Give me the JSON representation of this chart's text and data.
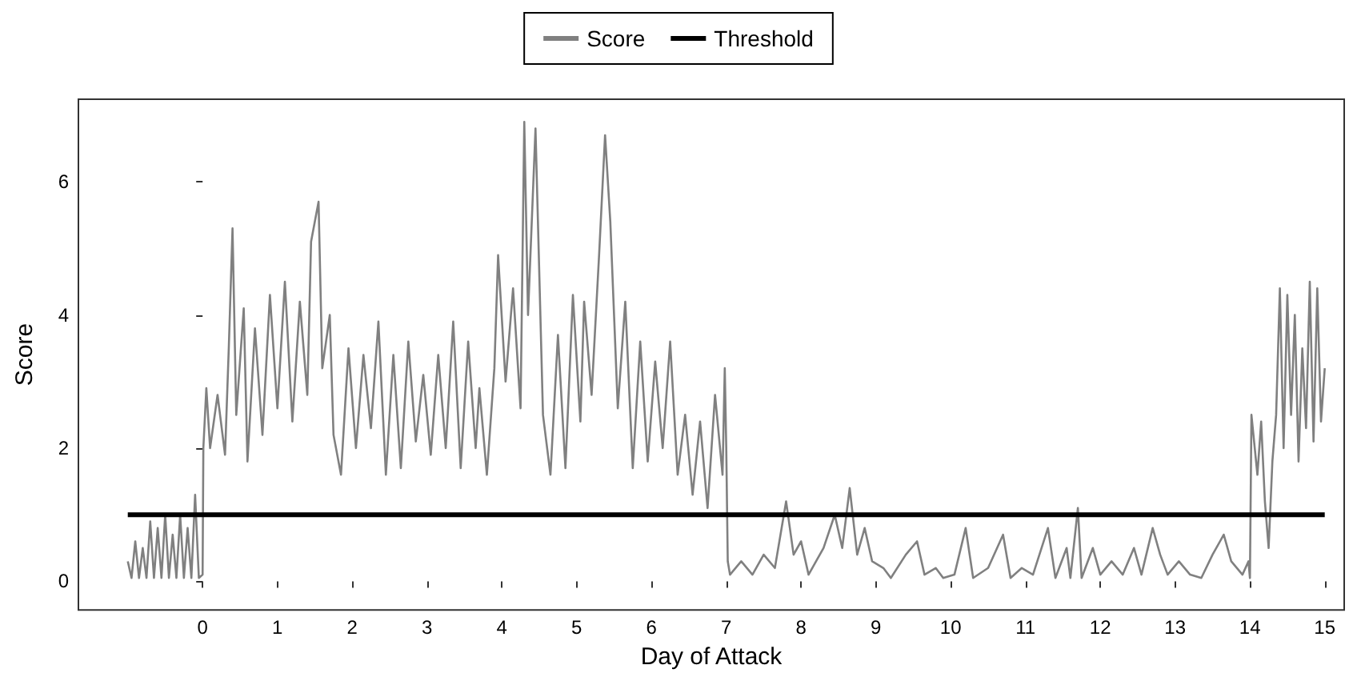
{
  "chart_data": {
    "type": "line",
    "xlabel": "Day of Attack",
    "ylabel": "Score",
    "xlim": [
      -1.66,
      15.26
    ],
    "ylim": [
      -0.43,
      7.24
    ],
    "xticks": [
      0,
      1,
      2,
      3,
      4,
      5,
      6,
      7,
      8,
      9,
      10,
      11,
      12,
      13,
      14,
      15
    ],
    "yticks": [
      0,
      2,
      4,
      6
    ],
    "grid": false,
    "legend": "top",
    "marker": "none",
    "line_style": "solid",
    "series": [
      {
        "name": "Score",
        "color": "#808080",
        "x": [
          -1,
          -0.95,
          -0.9,
          -0.85,
          -0.8,
          -0.75,
          -0.7,
          -0.65,
          -0.6,
          -0.55,
          -0.5,
          -0.45,
          -0.4,
          -0.35,
          -0.3,
          -0.25,
          -0.2,
          -0.15,
          -0.1,
          -0.05,
          0,
          0.01,
          0.05,
          0.1,
          0.2,
          0.3,
          0.35,
          0.4,
          0.45,
          0.55,
          0.6,
          0.7,
          0.8,
          0.9,
          1.0,
          1.1,
          1.2,
          1.3,
          1.4,
          1.45,
          1.55,
          1.6,
          1.7,
          1.75,
          1.85,
          1.95,
          2.05,
          2.15,
          2.25,
          2.35,
          2.45,
          2.55,
          2.65,
          2.75,
          2.85,
          2.95,
          3.05,
          3.15,
          3.25,
          3.35,
          3.45,
          3.55,
          3.65,
          3.7,
          3.8,
          3.9,
          3.95,
          4.05,
          4.15,
          4.25,
          4.3,
          4.35,
          4.45,
          4.55,
          4.65,
          4.75,
          4.85,
          4.95,
          5.05,
          5.1,
          5.2,
          5.3,
          5.38,
          5.45,
          5.55,
          5.65,
          5.75,
          5.85,
          5.95,
          6.05,
          6.15,
          6.25,
          6.35,
          6.45,
          6.55,
          6.65,
          6.75,
          6.85,
          6.95,
          6.98,
          7.0,
          7.02,
          7.05,
          7.2,
          7.35,
          7.5,
          7.65,
          7.8,
          7.9,
          8.0,
          8.1,
          8.3,
          8.45,
          8.55,
          8.65,
          8.75,
          8.85,
          8.95,
          9.1,
          9.2,
          9.4,
          9.55,
          9.65,
          9.8,
          9.9,
          10.05,
          10.2,
          10.3,
          10.5,
          10.7,
          10.8,
          10.95,
          11.1,
          11.3,
          11.4,
          11.55,
          11.6,
          11.7,
          11.75,
          11.9,
          12.0,
          12.15,
          12.3,
          12.45,
          12.55,
          12.7,
          12.8,
          12.9,
          13.05,
          13.2,
          13.35,
          13.5,
          13.65,
          13.75,
          13.9,
          13.98,
          14.0,
          14.02,
          14.1,
          14.15,
          14.2,
          14.25,
          14.3,
          14.35,
          14.4,
          14.45,
          14.5,
          14.55,
          14.6,
          14.65,
          14.7,
          14.75,
          14.8,
          14.85,
          14.9,
          14.95,
          15.0
        ],
        "values": [
          0.3,
          0.05,
          0.6,
          0.05,
          0.5,
          0.05,
          0.9,
          0.05,
          0.8,
          0.05,
          1.0,
          0.05,
          0.7,
          0.05,
          1.0,
          0.05,
          0.8,
          0.05,
          1.3,
          0.05,
          0.1,
          2.0,
          2.9,
          2.0,
          2.8,
          1.9,
          3.5,
          5.3,
          2.5,
          4.1,
          1.8,
          3.8,
          2.2,
          4.3,
          2.6,
          4.5,
          2.4,
          4.2,
          2.8,
          5.1,
          5.7,
          3.2,
          4.0,
          2.2,
          1.6,
          3.5,
          2.0,
          3.4,
          2.3,
          3.9,
          1.6,
          3.4,
          1.7,
          3.6,
          2.1,
          3.1,
          1.9,
          3.4,
          2.0,
          3.9,
          1.7,
          3.6,
          2.0,
          2.9,
          1.6,
          3.2,
          4.9,
          3.0,
          4.4,
          2.6,
          6.9,
          4.0,
          6.8,
          2.5,
          1.6,
          3.7,
          1.7,
          4.3,
          2.4,
          4.2,
          2.8,
          4.9,
          6.7,
          5.4,
          2.6,
          4.2,
          1.7,
          3.6,
          1.8,
          3.3,
          2.0,
          3.6,
          1.6,
          2.5,
          1.3,
          2.4,
          1.1,
          2.8,
          1.6,
          3.2,
          2.0,
          0.3,
          0.1,
          0.3,
          0.1,
          0.4,
          0.2,
          1.2,
          0.4,
          0.6,
          0.1,
          0.5,
          1.0,
          0.5,
          1.4,
          0.4,
          0.8,
          0.3,
          0.2,
          0.05,
          0.4,
          0.6,
          0.1,
          0.2,
          0.05,
          0.1,
          0.8,
          0.05,
          0.2,
          0.7,
          0.05,
          0.2,
          0.1,
          0.8,
          0.05,
          0.5,
          0.05,
          1.1,
          0.05,
          0.5,
          0.1,
          0.3,
          0.1,
          0.5,
          0.1,
          0.8,
          0.4,
          0.1,
          0.3,
          0.1,
          0.05,
          0.4,
          0.7,
          0.3,
          0.1,
          0.3,
          0.05,
          2.5,
          1.6,
          2.4,
          1.2,
          0.5,
          1.8,
          2.5,
          4.4,
          2.0,
          4.3,
          2.5,
          4.0,
          1.8,
          3.5,
          2.3,
          4.5,
          2.1,
          4.4,
          2.4,
          3.2
        ]
      },
      {
        "name": "Threshold",
        "color": "#000000",
        "x": [
          -1,
          15
        ],
        "values": [
          1,
          1
        ]
      }
    ]
  }
}
